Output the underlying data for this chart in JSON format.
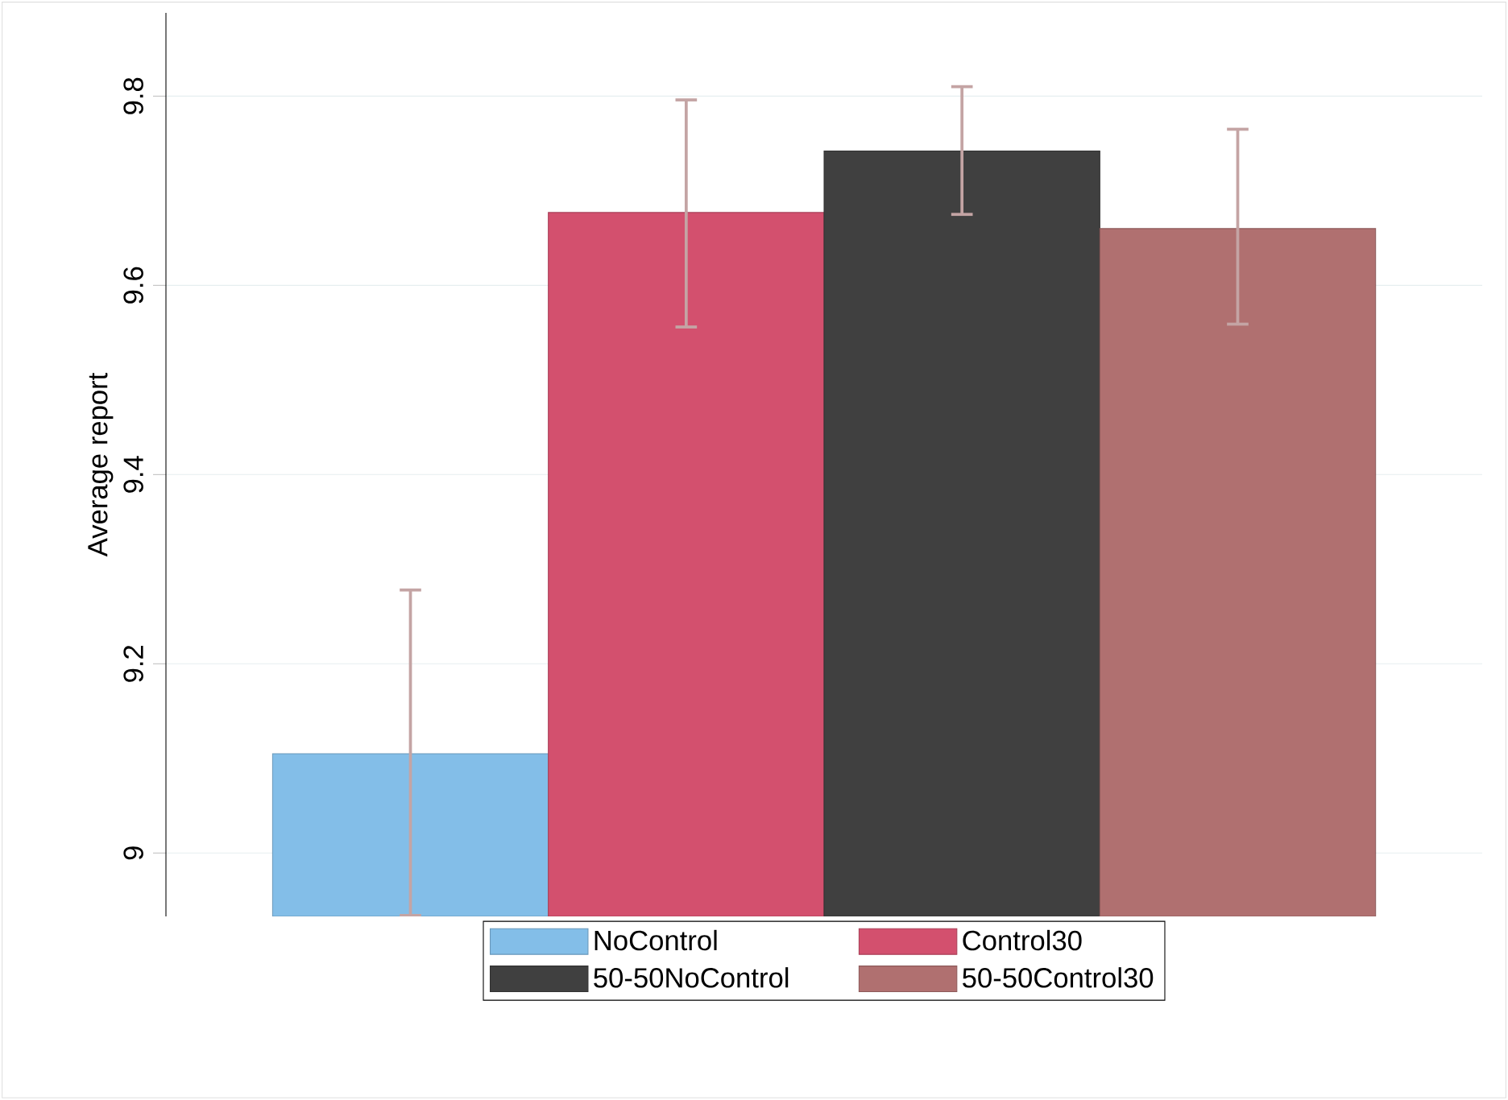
{
  "chart_data": {
    "type": "bar",
    "ylabel": "Average report",
    "categories": [
      null
    ],
    "series": [
      {
        "name": "NoControl",
        "color": "#83bee8",
        "values": [
          9.105
        ],
        "errors": [
          [
            8.934,
            9.278
          ]
        ]
      },
      {
        "name": "Control30",
        "color": "#d3506e",
        "values": [
          9.677
        ],
        "errors": [
          [
            9.556,
            9.796
          ]
        ]
      },
      {
        "name": "50-50NoControl",
        "color": "#404040",
        "values": [
          9.742
        ],
        "errors": [
          [
            9.675,
            9.81
          ]
        ]
      },
      {
        "name": "50-50Control30",
        "color": "#b07070",
        "values": [
          9.66
        ],
        "errors": [
          [
            9.559,
            9.765
          ]
        ]
      }
    ],
    "ylim": [
      8.933,
      9.888
    ],
    "yticks": [
      9,
      9.2,
      9.4,
      9.6,
      9.8
    ],
    "grid": "y",
    "legend": "bottom"
  }
}
